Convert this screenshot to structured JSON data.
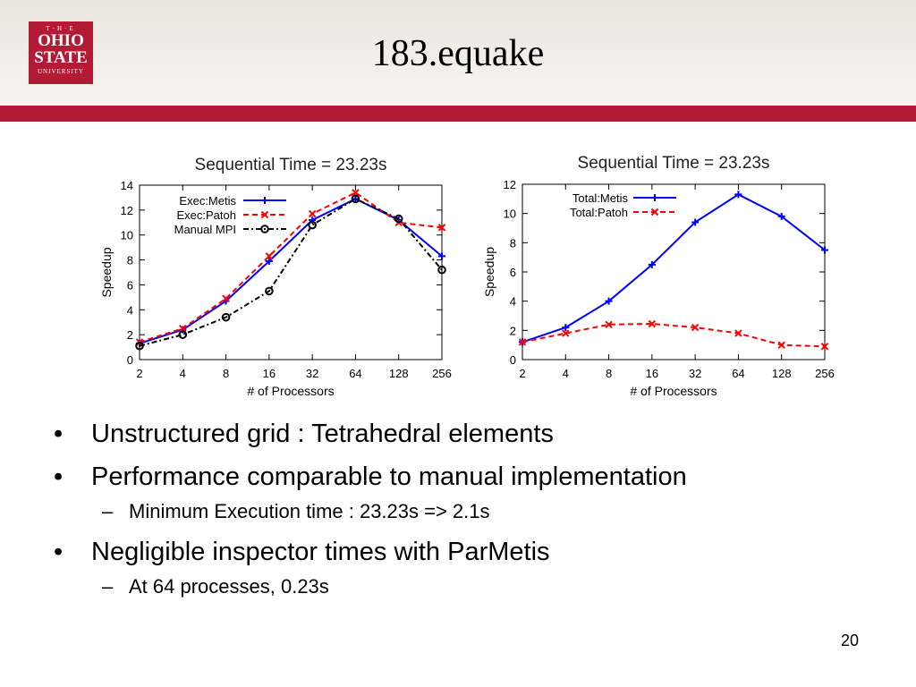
{
  "slide": {
    "title": "183.equake",
    "page_number": "20",
    "logo": {
      "line1": "T·H·E",
      "line2": "OHIO",
      "line3": "STATE",
      "line4": "UNIVERSITY"
    },
    "bullets": [
      {
        "text": "Unstructured grid : Tetrahedral elements",
        "subs": []
      },
      {
        "text": "Performance comparable to manual implementation",
        "subs": [
          "Minimum Execution time : 23.23s => 2.1s"
        ]
      },
      {
        "text": "Negligible inspector times with ParMetis",
        "subs": [
          "At 64 processes, 0.23s"
        ]
      }
    ],
    "bullet_glyph": "•",
    "dash_glyph": "–"
  },
  "chart_data": [
    {
      "type": "line",
      "title": "Sequential Time = 23.23s",
      "xlabel": "# of Processors",
      "ylabel": "Speedup",
      "categories": [
        "2",
        "4",
        "8",
        "16",
        "32",
        "64",
        "128",
        "256"
      ],
      "ylim": [
        0,
        14
      ],
      "yticks": [
        0,
        2,
        4,
        6,
        8,
        10,
        12,
        14
      ],
      "legend_position": "top-left",
      "series": [
        {
          "name": "Exec:Metis",
          "values": [
            1.3,
            2.4,
            4.7,
            7.9,
            11.2,
            12.9,
            11.2,
            8.3
          ],
          "color": "#0000ff",
          "marker": "plus",
          "dash": "solid"
        },
        {
          "name": "Exec:Patoh",
          "values": [
            1.4,
            2.5,
            4.9,
            8.3,
            11.7,
            13.4,
            11.0,
            10.6
          ],
          "color": "#ff0000",
          "marker": "cross",
          "dash": "dashed"
        },
        {
          "name": "Manual MPI",
          "values": [
            1.1,
            2.0,
            3.4,
            5.5,
            10.8,
            12.9,
            11.3,
            7.2
          ],
          "color": "#000000",
          "marker": "circle",
          "dash": "dashdot"
        }
      ]
    },
    {
      "type": "line",
      "title": "Sequential Time = 23.23s",
      "xlabel": "# of Processors",
      "ylabel": "Speedup",
      "categories": [
        "2",
        "4",
        "8",
        "16",
        "32",
        "64",
        "128",
        "256"
      ],
      "ylim": [
        0,
        12
      ],
      "yticks": [
        0,
        2,
        4,
        6,
        8,
        10,
        12
      ],
      "legend_position": "top-left",
      "series": [
        {
          "name": "Total:Metis",
          "values": [
            1.2,
            2.2,
            4.0,
            6.5,
            9.4,
            11.3,
            9.8,
            7.5
          ],
          "color": "#0000ff",
          "marker": "plus",
          "dash": "solid"
        },
        {
          "name": "Total:Patoh",
          "values": [
            1.2,
            1.8,
            2.4,
            2.45,
            2.2,
            1.8,
            1.0,
            0.9
          ],
          "color": "#ff0000",
          "marker": "cross",
          "dash": "dashed"
        }
      ]
    }
  ]
}
